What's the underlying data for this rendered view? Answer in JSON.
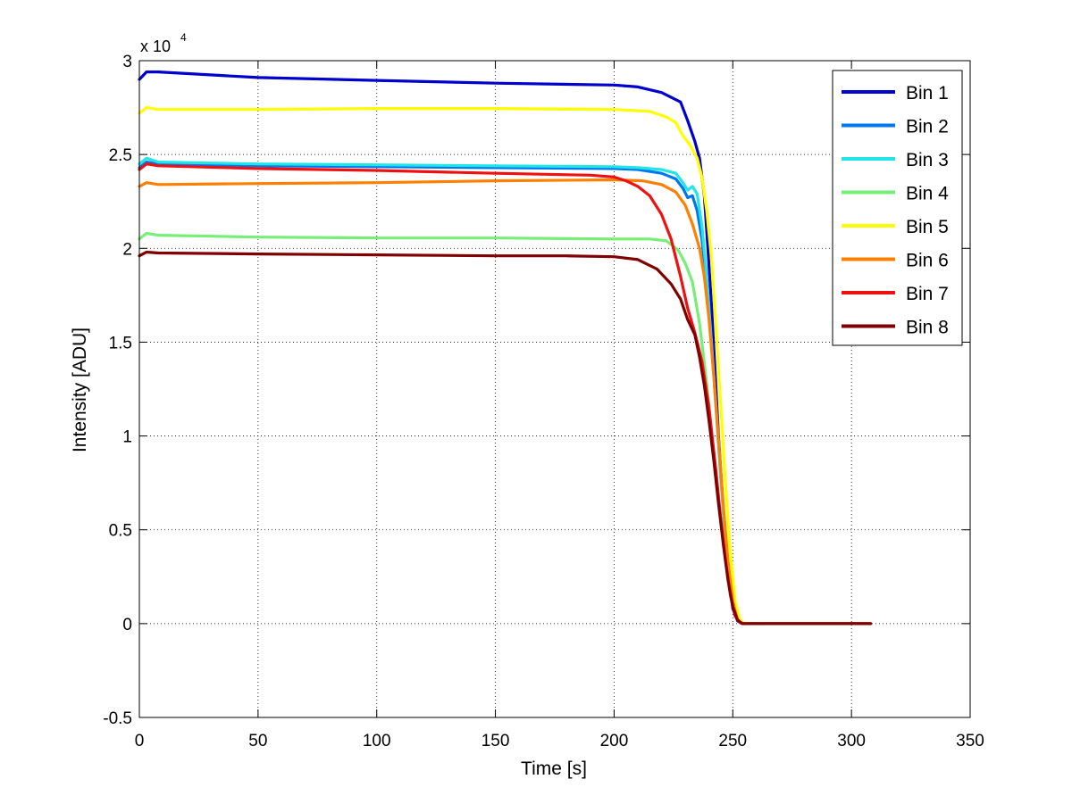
{
  "chart_data": {
    "type": "line",
    "title": "",
    "xlabel": "Time [s]",
    "ylabel": "Intensity [ADU]",
    "xlim": [
      0,
      350
    ],
    "ylim": [
      -5000,
      30000
    ],
    "x_ticks": [
      0,
      50,
      100,
      150,
      200,
      250,
      300,
      350
    ],
    "x_tick_labels": [
      "0",
      "50",
      "100",
      "150",
      "200",
      "250",
      "300",
      "350"
    ],
    "y_ticks": [
      -5000,
      0,
      5000,
      10000,
      15000,
      20000,
      25000,
      30000
    ],
    "y_tick_labels": [
      "-0.5",
      "0",
      "0.5",
      "1",
      "1.5",
      "2",
      "2.5",
      "3"
    ],
    "y_multiplier": {
      "base": "x 10",
      "exponent": "4"
    },
    "grid": true,
    "legend_position": "top-right",
    "series": [
      {
        "name": "Bin 1",
        "color": "#0000cc",
        "x": [
          0,
          3,
          8,
          50,
          100,
          150,
          200,
          210,
          220,
          228,
          231,
          234,
          236,
          238,
          239.5,
          241,
          242.5,
          244,
          246,
          248,
          250,
          252,
          254,
          280,
          308
        ],
        "y": [
          29000,
          29400,
          29400,
          29100,
          28950,
          28800,
          28700,
          28600,
          28300,
          27800,
          26800,
          25700,
          24800,
          22800,
          20000,
          17000,
          13500,
          10000,
          6000,
          2800,
          800,
          150,
          0,
          0,
          0
        ]
      },
      {
        "name": "Bin 2",
        "color": "#0077ee",
        "x": [
          0,
          3,
          8,
          50,
          100,
          150,
          200,
          210,
          220,
          226,
          229,
          231,
          233,
          235,
          237,
          239,
          241,
          243,
          245,
          247,
          249,
          251,
          253,
          255,
          280,
          308
        ],
        "y": [
          24300,
          24600,
          24500,
          24400,
          24350,
          24300,
          24250,
          24200,
          24000,
          23700,
          23200,
          22700,
          22800,
          22000,
          20500,
          18000,
          15000,
          11500,
          7800,
          4500,
          2000,
          600,
          100,
          0,
          0,
          0
        ]
      },
      {
        "name": "Bin 3",
        "color": "#22e6e6",
        "x": [
          0,
          3,
          8,
          50,
          100,
          150,
          200,
          210,
          220,
          226,
          229,
          231,
          233,
          235,
          237,
          239,
          241,
          243,
          245,
          247,
          249,
          251,
          253,
          255,
          280,
          308
        ],
        "y": [
          24500,
          24800,
          24600,
          24500,
          24450,
          24400,
          24350,
          24300,
          24200,
          24000,
          23500,
          23100,
          23300,
          22900,
          21200,
          18500,
          15000,
          11300,
          7600,
          4300,
          1900,
          500,
          100,
          0,
          0,
          0
        ]
      },
      {
        "name": "Bin 4",
        "color": "#77ee77",
        "x": [
          0,
          3,
          8,
          50,
          100,
          150,
          200,
          215,
          222,
          227,
          230,
          233,
          236,
          239,
          242,
          245,
          248,
          250,
          252,
          254,
          280,
          308
        ],
        "y": [
          20500,
          20800,
          20700,
          20600,
          20550,
          20550,
          20500,
          20500,
          20400,
          19900,
          19200,
          18200,
          16000,
          12800,
          9000,
          5500,
          2500,
          1000,
          250,
          0,
          0,
          0
        ]
      },
      {
        "name": "Bin 5",
        "color": "#ffff00",
        "x": [
          0,
          3,
          8,
          50,
          100,
          150,
          200,
          215,
          222,
          226,
          229,
          232,
          235,
          237,
          239,
          241,
          243,
          245,
          247,
          249,
          251,
          253,
          255,
          280,
          308
        ],
        "y": [
          27200,
          27500,
          27400,
          27400,
          27450,
          27450,
          27400,
          27300,
          27000,
          26700,
          26000,
          25500,
          24800,
          23800,
          22000,
          19500,
          15500,
          11500,
          7300,
          3800,
          1200,
          200,
          0,
          0,
          0
        ]
      },
      {
        "name": "Bin 6",
        "color": "#ff8000",
        "x": [
          0,
          3,
          8,
          50,
          100,
          150,
          200,
          212,
          220,
          226,
          230,
          233,
          236,
          238,
          240,
          242,
          244,
          246,
          248,
          250,
          252,
          254,
          280,
          308
        ],
        "y": [
          23300,
          23500,
          23400,
          23450,
          23500,
          23600,
          23650,
          23600,
          23400,
          23000,
          22300,
          21300,
          20000,
          18500,
          16200,
          13200,
          9800,
          6300,
          3300,
          1200,
          200,
          0,
          0,
          0
        ]
      },
      {
        "name": "Bin 7",
        "color": "#ee1111",
        "x": [
          0,
          3,
          8,
          50,
          100,
          150,
          190,
          200,
          205,
          210,
          215,
          220,
          224,
          228,
          231,
          234,
          237,
          240,
          243,
          245,
          247,
          249,
          251,
          253,
          255,
          280,
          308
        ],
        "y": [
          24200,
          24500,
          24400,
          24250,
          24150,
          24000,
          23900,
          23800,
          23600,
          23300,
          22800,
          21800,
          20500,
          18500,
          16800,
          15500,
          14000,
          11500,
          8000,
          5500,
          3300,
          1500,
          400,
          50,
          0,
          0,
          0
        ]
      },
      {
        "name": "Bin 8",
        "color": "#800000",
        "x": [
          0,
          3,
          8,
          50,
          100,
          150,
          180,
          200,
          210,
          218,
          224,
          228,
          231,
          234,
          236,
          238,
          240,
          242,
          244,
          246,
          248,
          250,
          252,
          254,
          280,
          308
        ],
        "y": [
          19600,
          19800,
          19750,
          19700,
          19650,
          19600,
          19600,
          19550,
          19400,
          18900,
          18100,
          17300,
          16200,
          15400,
          14200,
          12700,
          10800,
          8700,
          6400,
          4200,
          2300,
          900,
          200,
          0,
          0,
          0
        ]
      }
    ]
  }
}
